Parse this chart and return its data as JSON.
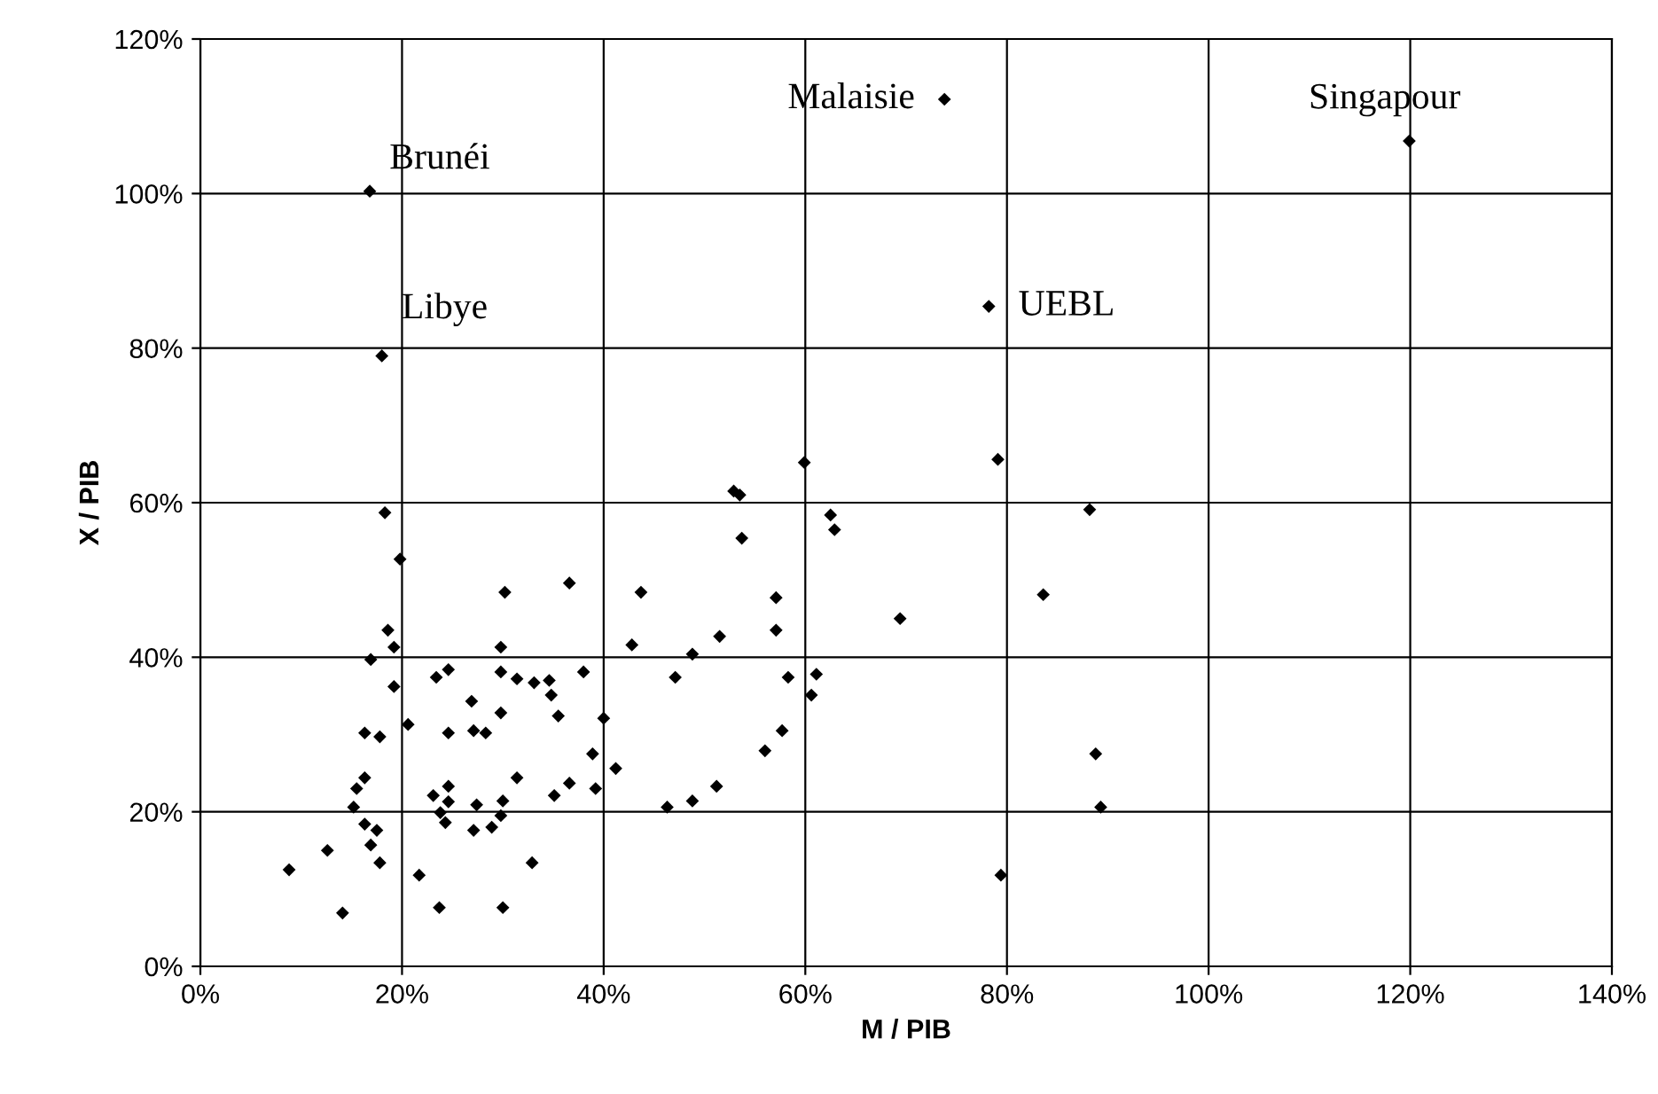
{
  "chart_data": {
    "type": "scatter",
    "xlabel": "M / PIB",
    "ylabel": "X / PIB",
    "xlim": [
      0,
      140
    ],
    "ylim": [
      0,
      120
    ],
    "xticks": [
      {
        "value": 0,
        "label": "0%"
      },
      {
        "value": 20,
        "label": "20%"
      },
      {
        "value": 40,
        "label": "40%"
      },
      {
        "value": 60,
        "label": "60%"
      },
      {
        "value": 80,
        "label": "80%"
      },
      {
        "value": 100,
        "label": "100%"
      },
      {
        "value": 120,
        "label": "120%"
      },
      {
        "value": 140,
        "label": "140%"
      }
    ],
    "yticks": [
      {
        "value": 0,
        "label": "0%"
      },
      {
        "value": 20,
        "label": "20%"
      },
      {
        "value": 40,
        "label": "40%"
      },
      {
        "value": 60,
        "label": "60%"
      },
      {
        "value": 80,
        "label": "80%"
      },
      {
        "value": 100,
        "label": "100%"
      },
      {
        "value": 120,
        "label": "120%"
      }
    ],
    "grid": true,
    "marker": "diamond",
    "legend": false,
    "series": [
      {
        "color": "#000000",
        "x": [
          18.0,
          18.3,
          19.8,
          18.6,
          19.2,
          16.9,
          19.2,
          30.2,
          36.6,
          43.7,
          42.8,
          29.8,
          23.4,
          24.6,
          29.8,
          31.4,
          33.1,
          34.6,
          34.8,
          38.0,
          47.1,
          26.9,
          29.8,
          35.5,
          40.0,
          20.6,
          16.3,
          17.8,
          24.6,
          27.1,
          28.3,
          38.9,
          41.2,
          31.4,
          36.6,
          39.2,
          35.1,
          16.3,
          15.5,
          15.2,
          23.1,
          24.6,
          24.6,
          23.8,
          24.3,
          27.4,
          30.0,
          29.8,
          27.1,
          28.9,
          46.3,
          16.3,
          17.5,
          16.9,
          17.8,
          12.6,
          8.8,
          14.1,
          21.7,
          32.9,
          23.7,
          30.0,
          59.9,
          79.1,
          52.9,
          53.5,
          53.7,
          62.5,
          62.9,
          88.2,
          57.1,
          57.1,
          69.4,
          83.6,
          51.5,
          48.8,
          58.3,
          61.1,
          60.6,
          57.7,
          56.0,
          51.2,
          48.8,
          88.8,
          89.3,
          79.4,
          119.9,
          16.8,
          78.2,
          73.8
        ],
        "values": [
          79.0,
          58.7,
          52.7,
          43.5,
          41.3,
          39.7,
          36.2,
          48.4,
          49.6,
          48.4,
          41.6,
          41.3,
          37.4,
          38.4,
          38.1,
          37.2,
          36.7,
          37.0,
          35.1,
          38.1,
          37.4,
          34.3,
          32.8,
          32.4,
          32.1,
          31.3,
          30.2,
          29.7,
          30.2,
          30.5,
          30.2,
          27.5,
          25.6,
          24.4,
          23.7,
          23.0,
          22.1,
          24.4,
          23.0,
          20.6,
          22.1,
          23.3,
          21.3,
          19.9,
          18.6,
          20.9,
          21.4,
          19.5,
          17.6,
          18.0,
          20.6,
          18.4,
          17.6,
          15.7,
          13.4,
          15.0,
          12.5,
          6.9,
          11.8,
          13.4,
          7.6,
          7.6,
          65.2,
          65.6,
          61.5,
          61.0,
          55.4,
          58.4,
          56.5,
          59.1,
          47.7,
          43.5,
          45.0,
          48.1,
          42.7,
          40.4,
          37.4,
          37.8,
          35.1,
          30.5,
          27.9,
          23.3,
          21.4,
          27.5,
          20.6,
          11.8,
          106.8,
          100.3,
          85.4,
          112.2
        ]
      }
    ],
    "annotations": [
      {
        "text": "Brunéi",
        "x": 16.8,
        "y": 100.3
      },
      {
        "text": "Libye",
        "x": 18.0,
        "y": 79.0
      },
      {
        "text": "Malaisie",
        "x": 73.8,
        "y": 112.2
      },
      {
        "text": "UEBL",
        "x": 78.2,
        "y": 85.4
      },
      {
        "text": "Singapour",
        "x": 119.9,
        "y": 106.8
      }
    ]
  }
}
